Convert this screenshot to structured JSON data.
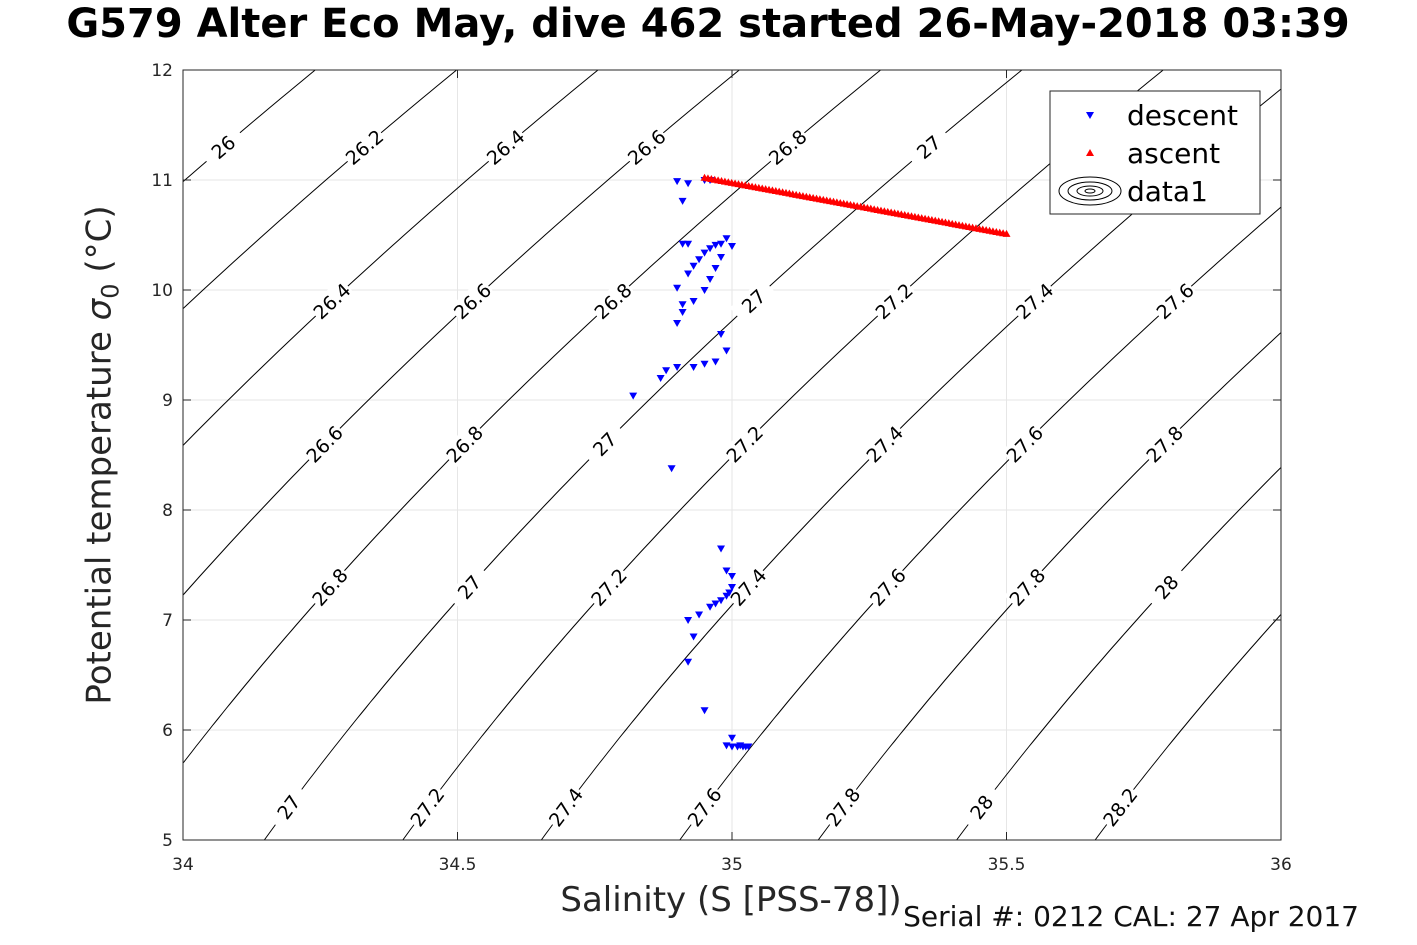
{
  "title": "G579 Alter Eco May, dive 462 started 26-May-2018 03:39",
  "footer": "Serial #: 0212  CAL: 27 Apr 2017",
  "chart_data": {
    "type": "scatter",
    "xlabel": "Salinity (S [PSS-78])",
    "ylabel_main": "Potential temperature ",
    "ylabel_sym": "σ",
    "ylabel_sub": "0",
    "ylabel_unit": " (°C)",
    "xlim": [
      34,
      36
    ],
    "ylim": [
      5,
      12
    ],
    "xticks": [
      "34",
      "34.5",
      "35",
      "35.5",
      "36"
    ],
    "yticks": [
      "5",
      "6",
      "7",
      "8",
      "9",
      "10",
      "11",
      "12"
    ],
    "grid": true,
    "legend_position": "top-right",
    "legend": [
      "descent",
      "ascent",
      "data1"
    ],
    "series": [
      {
        "name": "descent",
        "marker": "triangle-down",
        "color": "#0000ff",
        "x": [
          34.92,
          34.9,
          34.91,
          34.95,
          34.96,
          34.91,
          34.92,
          34.9,
          34.91,
          34.92,
          34.93,
          34.94,
          34.95,
          34.96,
          34.97,
          34.98,
          34.99,
          35.0,
          34.98,
          34.97,
          34.96,
          34.95,
          34.93,
          34.91,
          34.9,
          34.88,
          34.98,
          34.99,
          34.97,
          34.95,
          34.93,
          34.9,
          34.87,
          34.82,
          34.89,
          34.98,
          34.99,
          35.0,
          35.0,
          34.995,
          34.99,
          34.98,
          34.97,
          34.96,
          34.94,
          34.92,
          34.93,
          34.92,
          34.95,
          35.0,
          34.99,
          35.0,
          35.01,
          35.02,
          35.03,
          35.025,
          35.015
        ],
        "y": [
          10.97,
          10.99,
          10.81,
          11.0,
          11.0,
          10.42,
          10.42,
          10.02,
          9.87,
          10.15,
          10.22,
          10.28,
          10.34,
          10.38,
          10.41,
          10.42,
          10.47,
          10.4,
          10.3,
          10.2,
          10.1,
          10.0,
          9.9,
          9.8,
          9.7,
          9.27,
          9.6,
          9.45,
          9.35,
          9.33,
          9.3,
          9.3,
          9.2,
          9.04,
          8.38,
          7.65,
          7.45,
          7.4,
          7.3,
          7.25,
          7.22,
          7.18,
          7.15,
          7.12,
          7.05,
          7.0,
          6.85,
          6.62,
          6.18,
          5.93,
          5.86,
          5.85,
          5.85,
          5.85,
          5.85,
          5.85,
          5.86
        ]
      },
      {
        "name": "ascent",
        "marker": "triangle-up",
        "color": "#ff0000",
        "x": [
          34.95,
          35.5
        ],
        "y": [
          11.02,
          10.51
        ],
        "count": 90
      }
    ],
    "contours": [
      {
        "label": "26",
        "sigma": 26.0
      },
      {
        "label": "26.2",
        "sigma": 26.2
      },
      {
        "label": "26.4",
        "sigma": 26.4
      },
      {
        "label": "26.6",
        "sigma": 26.6
      },
      {
        "label": "26.8",
        "sigma": 26.8
      },
      {
        "label": "27",
        "sigma": 27.0
      },
      {
        "label": "27.2",
        "sigma": 27.2
      },
      {
        "label": "27.4",
        "sigma": 27.4
      },
      {
        "label": "27.6",
        "sigma": 27.6
      },
      {
        "label": "27.8",
        "sigma": 27.8
      },
      {
        "label": "28",
        "sigma": 28.0
      },
      {
        "label": "28.2",
        "sigma": 28.2
      }
    ]
  }
}
